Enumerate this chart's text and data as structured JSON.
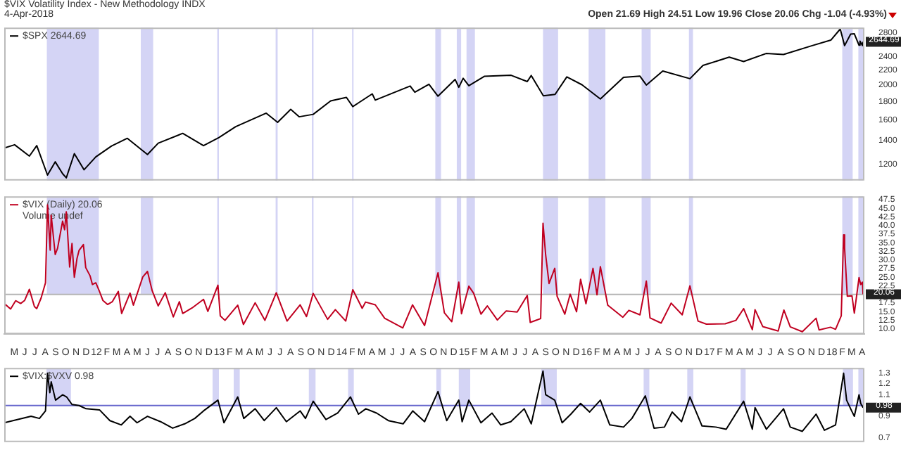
{
  "chart_data": [
    {
      "type": "line",
      "title": "$VIX Volatility Index - New Methodology INDX",
      "subtitle": "4-Apr-2018",
      "annotations": [
        "Open 21.69 High 24.51 Low 19.96 Close 20.06 Chg -1.04 (-4.93%)",
        {
          "text": "2644.69",
          "x": "2018-04-04",
          "y": 2644.69
        }
      ],
      "legend": "top left",
      "tick_labels": "y",
      "log": "y",
      "xlim": [
        "2011-04-01",
        "2018-04-08"
      ],
      "ylim": [
        1080,
        2900
      ],
      "yticks": [
        1200,
        1400,
        1600,
        1800,
        2000,
        2200,
        2400,
        2800
      ],
      "bands": [
        {
          "axis": "x",
          "from": "2011-08-06",
          "to": "2012-01-08",
          "color": "#d4d4f5"
        },
        {
          "axis": "x",
          "from": "2012-05-12",
          "to": "2012-06-18",
          "color": "#d4d4f5"
        },
        {
          "axis": "x",
          "from": "2012-12-26",
          "to": "2012-12-31",
          "color": "#d4d4f5"
        },
        {
          "axis": "x",
          "from": "2013-06-18",
          "to": "2013-06-24",
          "color": "#d4d4f5"
        },
        {
          "axis": "x",
          "from": "2013-10-04",
          "to": "2013-10-09",
          "color": "#d4d4f5"
        },
        {
          "axis": "x",
          "from": "2014-02-01",
          "to": "2014-02-05",
          "color": "#d4d4f5"
        },
        {
          "axis": "x",
          "from": "2014-10-07",
          "to": "2014-10-24",
          "color": "#d4d4f5"
        },
        {
          "axis": "x",
          "from": "2014-12-10",
          "to": "2014-12-23",
          "color": "#d4d4f5"
        },
        {
          "axis": "x",
          "from": "2015-01-08",
          "to": "2015-02-02",
          "color": "#d4d4f5"
        },
        {
          "axis": "x",
          "from": "2015-08-24",
          "to": "2015-10-08",
          "color": "#d4d4f5"
        },
        {
          "axis": "x",
          "from": "2016-01-07",
          "to": "2016-02-26",
          "color": "#d4d4f5"
        },
        {
          "axis": "x",
          "from": "2016-06-13",
          "to": "2016-07-10",
          "color": "#d4d4f5"
        },
        {
          "axis": "x",
          "from": "2016-11-01",
          "to": "2016-11-13",
          "color": "#d4d4f5"
        },
        {
          "axis": "x",
          "from": "2018-02-01",
          "to": "2018-03-04",
          "color": "#d4d4f5"
        },
        {
          "axis": "x",
          "from": "2018-03-21",
          "to": "2018-04-04",
          "color": "#d4d4f5"
        }
      ],
      "series": [
        {
          "name": "$SPX 2644.69",
          "color": "#000000",
          "x": [
            "2011-04-01",
            "2011-05-02",
            "2011-06-15",
            "2011-07-07",
            "2011-08-08",
            "2011-08-31",
            "2011-09-22",
            "2011-10-03",
            "2011-10-27",
            "2011-11-25",
            "2011-12-30",
            "2012-02-15",
            "2012-04-02",
            "2012-06-01",
            "2012-07-03",
            "2012-09-14",
            "2012-11-15",
            "2012-12-31",
            "2013-02-19",
            "2013-05-21",
            "2013-06-24",
            "2013-08-02",
            "2013-08-27",
            "2013-10-08",
            "2013-11-29",
            "2014-01-15",
            "2014-02-03",
            "2014-04-02",
            "2014-04-11",
            "2014-07-24",
            "2014-08-07",
            "2014-09-18",
            "2014-10-15",
            "2014-12-05",
            "2014-12-16",
            "2014-12-29",
            "2015-01-15",
            "2015-03-02",
            "2015-05-21",
            "2015-07-08",
            "2015-07-20",
            "2015-08-25",
            "2015-09-29",
            "2015-11-03",
            "2015-12-18",
            "2016-02-11",
            "2016-04-20",
            "2016-06-08",
            "2016-06-27",
            "2016-08-15",
            "2016-11-04",
            "2016-12-13",
            "2017-03-01",
            "2017-04-13",
            "2017-06-19",
            "2017-08-10",
            "2017-10-31",
            "2017-12-29",
            "2018-01-26",
            "2018-02-08",
            "2018-02-26",
            "2018-03-09",
            "2018-03-23",
            "2018-03-26",
            "2018-04-02",
            "2018-04-04"
          ],
          "values": [
            1332,
            1361,
            1265,
            1353,
            1119,
            1219,
            1129,
            1099,
            1285,
            1158,
            1258,
            1350,
            1419,
            1278,
            1375,
            1465,
            1353,
            1426,
            1530,
            1669,
            1573,
            1710,
            1630,
            1656,
            1806,
            1848,
            1741,
            1890,
            1815,
            1988,
            1910,
            2011,
            1862,
            2075,
            1972,
            2090,
            1992,
            2117,
            2131,
            2046,
            2128,
            1867,
            1884,
            2109,
            2005,
            1829,
            2102,
            2119,
            2001,
            2190,
            2085,
            2271,
            2396,
            2329,
            2453,
            2438,
            2575,
            2674,
            2873,
            2581,
            2780,
            2786,
            2588,
            2658,
            2582,
            2644.69
          ]
        }
      ]
    },
    {
      "type": "line",
      "annotations": [
        "Volume undef",
        {
          "text": "20.06",
          "x": "2018-04-04",
          "y": 20.06
        }
      ],
      "legend": "top left",
      "xlim": [
        "2011-04-01",
        "2018-04-08"
      ],
      "ylim": [
        8.5,
        48.5
      ],
      "xticks": [
        {
          "value": "2011-05",
          "label": "M"
        },
        {
          "value": "2011-06",
          "label": "J"
        },
        {
          "value": "2011-07",
          "label": "J"
        },
        {
          "value": "2011-08",
          "label": "A"
        },
        {
          "value": "2011-09",
          "label": "S"
        },
        {
          "value": "2011-10",
          "label": "O"
        },
        {
          "value": "2011-11",
          "label": "N"
        },
        {
          "value": "2011-12",
          "label": "D"
        },
        {
          "value": "2012-01",
          "label": "12"
        },
        {
          "value": "2012-02",
          "label": "F"
        },
        {
          "value": "2012-03",
          "label": "M"
        },
        {
          "value": "2012-04",
          "label": "A"
        },
        {
          "value": "2012-05",
          "label": "M"
        },
        {
          "value": "2012-06",
          "label": "J"
        },
        {
          "value": "2012-07",
          "label": "J"
        },
        {
          "value": "2012-08",
          "label": "A"
        },
        {
          "value": "2012-09",
          "label": "S"
        },
        {
          "value": "2012-10",
          "label": "O"
        },
        {
          "value": "2012-11",
          "label": "N"
        },
        {
          "value": "2012-12",
          "label": "D"
        },
        {
          "value": "2013-01",
          "label": "13"
        },
        {
          "value": "2013-02",
          "label": "F"
        },
        {
          "value": "2013-03",
          "label": "M"
        },
        {
          "value": "2013-04",
          "label": "A"
        },
        {
          "value": "2013-05",
          "label": "M"
        },
        {
          "value": "2013-06",
          "label": "J"
        },
        {
          "value": "2013-07",
          "label": "J"
        },
        {
          "value": "2013-08",
          "label": "A"
        },
        {
          "value": "2013-09",
          "label": "S"
        },
        {
          "value": "2013-10",
          "label": "O"
        },
        {
          "value": "2013-11",
          "label": "N"
        },
        {
          "value": "2013-12",
          "label": "D"
        },
        {
          "value": "2014-01",
          "label": "14"
        },
        {
          "value": "2014-02",
          "label": "F"
        },
        {
          "value": "2014-03",
          "label": "M"
        },
        {
          "value": "2014-04",
          "label": "A"
        },
        {
          "value": "2014-05",
          "label": "M"
        },
        {
          "value": "2014-06",
          "label": "J"
        },
        {
          "value": "2014-07",
          "label": "J"
        },
        {
          "value": "2014-08",
          "label": "A"
        },
        {
          "value": "2014-09",
          "label": "S"
        },
        {
          "value": "2014-10",
          "label": "O"
        },
        {
          "value": "2014-11",
          "label": "N"
        },
        {
          "value": "2014-12",
          "label": "D"
        },
        {
          "value": "2015-01",
          "label": "15"
        },
        {
          "value": "2015-02",
          "label": "F"
        },
        {
          "value": "2015-03",
          "label": "M"
        },
        {
          "value": "2015-04",
          "label": "A"
        },
        {
          "value": "2015-05",
          "label": "M"
        },
        {
          "value": "2015-06",
          "label": "J"
        },
        {
          "value": "2015-07",
          "label": "J"
        },
        {
          "value": "2015-08",
          "label": "A"
        },
        {
          "value": "2015-09",
          "label": "S"
        },
        {
          "value": "2015-10",
          "label": "O"
        },
        {
          "value": "2015-11",
          "label": "N"
        },
        {
          "value": "2015-12",
          "label": "D"
        },
        {
          "value": "2016-01",
          "label": "16"
        },
        {
          "value": "2016-02",
          "label": "F"
        },
        {
          "value": "2016-03",
          "label": "M"
        },
        {
          "value": "2016-04",
          "label": "A"
        },
        {
          "value": "2016-05",
          "label": "M"
        },
        {
          "value": "2016-06",
          "label": "J"
        },
        {
          "value": "2016-07",
          "label": "J"
        },
        {
          "value": "2016-08",
          "label": "A"
        },
        {
          "value": "2016-09",
          "label": "S"
        },
        {
          "value": "2016-10",
          "label": "O"
        },
        {
          "value": "2016-11",
          "label": "N"
        },
        {
          "value": "2016-12",
          "label": "D"
        },
        {
          "value": "2017-01",
          "label": "17"
        },
        {
          "value": "2017-02",
          "label": "F"
        },
        {
          "value": "2017-03",
          "label": "M"
        },
        {
          "value": "2017-04",
          "label": "A"
        },
        {
          "value": "2017-05",
          "label": "M"
        },
        {
          "value": "2017-06",
          "label": "J"
        },
        {
          "value": "2017-07",
          "label": "J"
        },
        {
          "value": "2017-08",
          "label": "A"
        },
        {
          "value": "2017-09",
          "label": "S"
        },
        {
          "value": "2017-10",
          "label": "O"
        },
        {
          "value": "2017-11",
          "label": "N"
        },
        {
          "value": "2017-12",
          "label": "D"
        },
        {
          "value": "2018-01",
          "label": "18"
        },
        {
          "value": "2018-02",
          "label": "F"
        },
        {
          "value": "2018-03",
          "label": "M"
        },
        {
          "value": "2018-04",
          "label": "A"
        }
      ],
      "yticks": [
        {
          "value": 10,
          "label": "10.0"
        },
        12.5,
        {
          "value": 15,
          "label": "15.0"
        },
        17.5,
        22.5,
        {
          "value": 25,
          "label": "25.0"
        },
        27.5,
        {
          "value": 30,
          "label": "30.0"
        },
        32.5,
        {
          "value": 35,
          "label": "35.0"
        },
        37.5,
        {
          "value": 40,
          "label": "40.0"
        },
        42.5,
        {
          "value": 45,
          "label": "45.0"
        },
        47.5
      ],
      "ref_lines": [
        {
          "axis": "y",
          "value": 20,
          "color": "#b4b4b4"
        }
      ],
      "bands": [
        {
          "axis": "x",
          "from": "2011-08-06",
          "to": "2012-01-08",
          "color": "#d4d4f5"
        },
        {
          "axis": "x",
          "from": "2012-05-12",
          "to": "2012-06-18",
          "color": "#d4d4f5"
        },
        {
          "axis": "x",
          "from": "2012-12-26",
          "to": "2012-12-31",
          "color": "#d4d4f5"
        },
        {
          "axis": "x",
          "from": "2013-06-18",
          "to": "2013-06-24",
          "color": "#d4d4f5"
        },
        {
          "axis": "x",
          "from": "2013-10-04",
          "to": "2013-10-09",
          "color": "#d4d4f5"
        },
        {
          "axis": "x",
          "from": "2014-02-01",
          "to": "2014-02-05",
          "color": "#d4d4f5"
        },
        {
          "axis": "x",
          "from": "2014-10-07",
          "to": "2014-10-24",
          "color": "#d4d4f5"
        },
        {
          "axis": "x",
          "from": "2014-12-10",
          "to": "2014-12-23",
          "color": "#d4d4f5"
        },
        {
          "axis": "x",
          "from": "2015-01-08",
          "to": "2015-02-02",
          "color": "#d4d4f5"
        },
        {
          "axis": "x",
          "from": "2015-08-24",
          "to": "2015-10-08",
          "color": "#d4d4f5"
        },
        {
          "axis": "x",
          "from": "2016-01-07",
          "to": "2016-02-26",
          "color": "#d4d4f5"
        },
        {
          "axis": "x",
          "from": "2016-06-13",
          "to": "2016-07-10",
          "color": "#d4d4f5"
        },
        {
          "axis": "x",
          "from": "2016-11-01",
          "to": "2016-11-13",
          "color": "#d4d4f5"
        },
        {
          "axis": "x",
          "from": "2018-02-01",
          "to": "2018-03-04",
          "color": "#d4d4f5"
        },
        {
          "axis": "x",
          "from": "2018-03-21",
          "to": "2018-04-04",
          "color": "#d4d4f5"
        }
      ],
      "series": [
        {
          "name": "$VIX (Daily) 20.06",
          "color": "#c00020",
          "x": [
            "2011-04-01",
            "2011-04-20",
            "2011-05-05",
            "2011-05-20",
            "2011-06-01",
            "2011-06-15",
            "2011-06-30",
            "2011-07-07",
            "2011-07-20",
            "2011-08-02",
            "2011-08-08",
            "2011-08-10",
            "2011-08-16",
            "2011-08-19",
            "2011-08-31",
            "2011-09-07",
            "2011-09-22",
            "2011-09-28",
            "2011-10-03",
            "2011-10-13",
            "2011-10-20",
            "2011-10-27",
            "2011-11-04",
            "2011-11-10",
            "2011-11-23",
            "2011-11-30",
            "2011-12-13",
            "2011-12-20",
            "2011-12-30",
            "2012-01-09",
            "2012-01-20",
            "2012-02-03",
            "2012-02-17",
            "2012-03-06",
            "2012-03-16",
            "2012-04-10",
            "2012-04-20",
            "2012-05-18",
            "2012-06-01",
            "2012-06-15",
            "2012-07-03",
            "2012-07-24",
            "2012-08-17",
            "2012-09-04",
            "2012-09-14",
            "2012-10-12",
            "2012-11-15",
            "2012-11-28",
            "2012-12-28",
            "2013-01-04",
            "2013-01-18",
            "2013-02-25",
            "2013-03-14",
            "2013-04-18",
            "2013-05-17",
            "2013-06-20",
            "2013-07-22",
            "2013-08-30",
            "2013-09-18",
            "2013-10-08",
            "2013-11-20",
            "2013-12-13",
            "2014-01-13",
            "2014-02-03",
            "2014-03-03",
            "2014-03-13",
            "2014-04-11",
            "2014-05-09",
            "2014-07-02",
            "2014-07-31",
            "2014-09-05",
            "2014-10-15",
            "2014-11-03",
            "2014-11-25",
            "2014-12-16",
            "2014-12-24",
            "2015-01-15",
            "2015-01-29",
            "2015-02-20",
            "2015-03-11",
            "2015-04-10",
            "2015-05-06",
            "2015-06-08",
            "2015-07-08",
            "2015-07-17",
            "2015-08-17",
            "2015-08-24",
            "2015-09-01",
            "2015-09-11",
            "2015-09-28",
            "2015-10-05",
            "2015-10-28",
            "2015-11-13",
            "2015-12-02",
            "2015-12-14",
            "2015-12-30",
            "2016-01-20",
            "2016-02-01",
            "2016-02-11",
            "2016-03-04",
            "2016-04-18",
            "2016-05-06",
            "2016-06-08",
            "2016-06-27",
            "2016-07-08",
            "2016-08-10",
            "2016-09-09",
            "2016-10-12",
            "2016-11-04",
            "2016-11-28",
            "2016-12-23",
            "2017-02-17",
            "2017-03-21",
            "2017-04-13",
            "2017-05-09",
            "2017-05-17",
            "2017-06-09",
            "2017-07-25",
            "2017-08-11",
            "2017-08-30",
            "2017-10-05",
            "2017-11-15",
            "2017-11-24",
            "2017-12-28",
            "2018-01-12",
            "2018-01-29",
            "2018-02-05",
            "2018-02-08",
            "2018-02-16",
            "2018-03-02",
            "2018-03-09",
            "2018-03-23",
            "2018-03-28",
            "2018-04-02",
            "2018-04-04"
          ],
          "values": [
            17.4,
            15.8,
            18.2,
            17.4,
            18.3,
            21.5,
            16.5,
            15.9,
            19.0,
            23.4,
            46.0,
            42.9,
            32.9,
            43.0,
            31.6,
            33.4,
            41.3,
            38.8,
            44.0,
            28.0,
            34.8,
            25.0,
            30.5,
            32.8,
            34.5,
            27.8,
            25.4,
            22.9,
            23.4,
            21.1,
            18.3,
            17.1,
            17.9,
            20.9,
            14.5,
            20.4,
            16.9,
            25.1,
            26.7,
            21.1,
            16.7,
            20.5,
            13.5,
            17.9,
            14.5,
            16.1,
            18.6,
            15.1,
            22.7,
            13.8,
            12.5,
            16.9,
            11.3,
            17.6,
            12.5,
            20.5,
            12.3,
            17.0,
            13.6,
            20.3,
            12.8,
            15.6,
            12.3,
            21.4,
            16.0,
            17.8,
            17.0,
            13.1,
            10.3,
            17.0,
            11.0,
            26.3,
            14.7,
            12.1,
            23.6,
            14.4,
            22.4,
            20.4,
            14.3,
            16.7,
            12.6,
            15.2,
            14.9,
            19.7,
            11.9,
            13.0,
            40.7,
            31.4,
            23.2,
            27.6,
            19.5,
            14.3,
            20.1,
            15.0,
            24.4,
            17.3,
            27.6,
            19.9,
            28.1,
            16.9,
            13.4,
            15.4,
            14.1,
            23.9,
            13.2,
            11.7,
            17.5,
            14.1,
            22.5,
            12.3,
            11.4,
            11.5,
            12.5,
            15.9,
            9.8,
            15.6,
            10.7,
            9.4,
            15.5,
            10.6,
            9.2,
            13.1,
            9.7,
            10.5,
            9.9,
            13.8,
            37.3,
            33.5,
            19.5,
            19.6,
            14.6,
            24.9,
            22.9,
            23.6,
            20.06
          ]
        }
      ]
    },
    {
      "type": "line",
      "annotations": [
        {
          "text": "0.98",
          "x": "2018-04-04",
          "y": 0.98
        }
      ],
      "legend": "top left",
      "tick_labels": "y",
      "xlim": [
        "2011-04-01",
        "2018-04-08"
      ],
      "ylim": [
        0.66,
        1.35
      ],
      "yticks": [
        0.7,
        0.9,
        1.1,
        1.2,
        1.3
      ],
      "ref_lines": [
        {
          "axis": "y",
          "value": 1,
          "color": "#6666cc"
        }
      ],
      "bands": [
        {
          "axis": "x",
          "from": "2011-08-05",
          "to": "2011-10-17",
          "color": "#d4d4f5"
        },
        {
          "axis": "x",
          "from": "2012-12-12",
          "to": "2012-12-31",
          "color": "#d4d4f5"
        },
        {
          "axis": "x",
          "from": "2013-02-13",
          "to": "2013-03-03",
          "color": "#d4d4f5"
        },
        {
          "axis": "x",
          "from": "2013-09-25",
          "to": "2013-10-15",
          "color": "#d4d4f5"
        },
        {
          "axis": "x",
          "from": "2014-01-20",
          "to": "2014-02-06",
          "color": "#d4d4f5"
        },
        {
          "axis": "x",
          "from": "2014-10-10",
          "to": "2014-10-24",
          "color": "#d4d4f5"
        },
        {
          "axis": "x",
          "from": "2014-12-16",
          "to": "2015-01-19",
          "color": "#d4d4f5"
        },
        {
          "axis": "x",
          "from": "2015-08-19",
          "to": "2015-10-04",
          "color": "#d4d4f5"
        },
        {
          "axis": "x",
          "from": "2016-06-19",
          "to": "2016-07-06",
          "color": "#d4d4f5"
        },
        {
          "axis": "x",
          "from": "2016-10-27",
          "to": "2016-11-14",
          "color": "#d4d4f5"
        },
        {
          "axis": "x",
          "from": "2017-04-04",
          "to": "2017-04-19",
          "color": "#d4d4f5"
        },
        {
          "axis": "x",
          "from": "2018-02-03",
          "to": "2018-03-05",
          "color": "#d4d4f5"
        },
        {
          "axis": "x",
          "from": "2018-03-21",
          "to": "2018-04-04",
          "color": "#d4d4f5"
        }
      ],
      "series": [
        {
          "name": "$VIX:$VXV 0.98",
          "color": "#000000",
          "x": [
            "2011-04-01",
            "2011-05-10",
            "2011-06-20",
            "2011-07-15",
            "2011-08-02",
            "2011-08-08",
            "2011-08-15",
            "2011-08-19",
            "2011-09-01",
            "2011-09-22",
            "2011-10-04",
            "2011-10-20",
            "2011-11-10",
            "2011-12-01",
            "2012-01-10",
            "2012-02-10",
            "2012-03-15",
            "2012-04-10",
            "2012-05-01",
            "2012-06-01",
            "2012-07-10",
            "2012-08-15",
            "2012-09-20",
            "2012-10-20",
            "2012-11-15",
            "2012-12-28",
            "2013-01-15",
            "2013-02-25",
            "2013-03-15",
            "2013-04-18",
            "2013-05-15",
            "2013-06-20",
            "2013-07-20",
            "2013-08-30",
            "2013-09-15",
            "2013-10-08",
            "2013-11-15",
            "2013-12-20",
            "2014-01-27",
            "2014-02-20",
            "2014-03-14",
            "2014-04-15",
            "2014-05-20",
            "2014-07-03",
            "2014-08-01",
            "2014-09-05",
            "2014-10-15",
            "2014-11-10",
            "2014-12-16",
            "2014-12-26",
            "2015-01-15",
            "2015-02-20",
            "2015-03-25",
            "2015-04-20",
            "2015-05-20",
            "2015-06-29",
            "2015-07-20",
            "2015-08-24",
            "2015-09-01",
            "2015-09-28",
            "2015-10-20",
            "2015-11-15",
            "2015-12-14",
            "2016-01-10",
            "2016-02-11",
            "2016-03-10",
            "2016-04-20",
            "2016-05-15",
            "2016-06-24",
            "2016-07-20",
            "2016-08-20",
            "2016-09-12",
            "2016-10-10",
            "2016-11-04",
            "2016-12-10",
            "2017-01-20",
            "2017-02-20",
            "2017-04-13",
            "2017-05-09",
            "2017-05-17",
            "2017-06-20",
            "2017-08-10",
            "2017-08-30",
            "2017-10-05",
            "2017-11-15",
            "2017-12-10",
            "2018-01-12",
            "2018-02-05",
            "2018-02-14",
            "2018-03-01",
            "2018-03-09",
            "2018-03-23",
            "2018-03-28",
            "2018-04-04"
          ],
          "values": [
            0.84,
            0.87,
            0.9,
            0.88,
            0.95,
            1.3,
            1.12,
            1.22,
            1.05,
            1.1,
            1.08,
            1.01,
            1.0,
            0.97,
            0.96,
            0.86,
            0.82,
            0.9,
            0.84,
            0.9,
            0.85,
            0.79,
            0.83,
            0.88,
            0.95,
            1.05,
            0.84,
            1.08,
            0.88,
            0.97,
            0.86,
            0.98,
            0.85,
            0.95,
            0.88,
            1.04,
            0.87,
            0.93,
            1.08,
            0.92,
            0.97,
            0.93,
            0.86,
            0.83,
            0.95,
            0.85,
            1.13,
            0.86,
            1.05,
            0.85,
            1.05,
            0.84,
            0.93,
            0.82,
            0.85,
            0.97,
            0.83,
            1.32,
            1.1,
            1.05,
            0.84,
            0.92,
            1.02,
            0.94,
            1.05,
            0.82,
            0.8,
            0.88,
            1.09,
            0.79,
            0.8,
            0.94,
            0.85,
            1.08,
            0.81,
            0.8,
            0.78,
            1.04,
            0.78,
            0.98,
            0.78,
            0.97,
            0.8,
            0.76,
            0.92,
            0.77,
            0.82,
            1.3,
            1.05,
            0.95,
            0.9,
            1.1,
            1.02,
            0.98
          ]
        }
      ]
    }
  ]
}
